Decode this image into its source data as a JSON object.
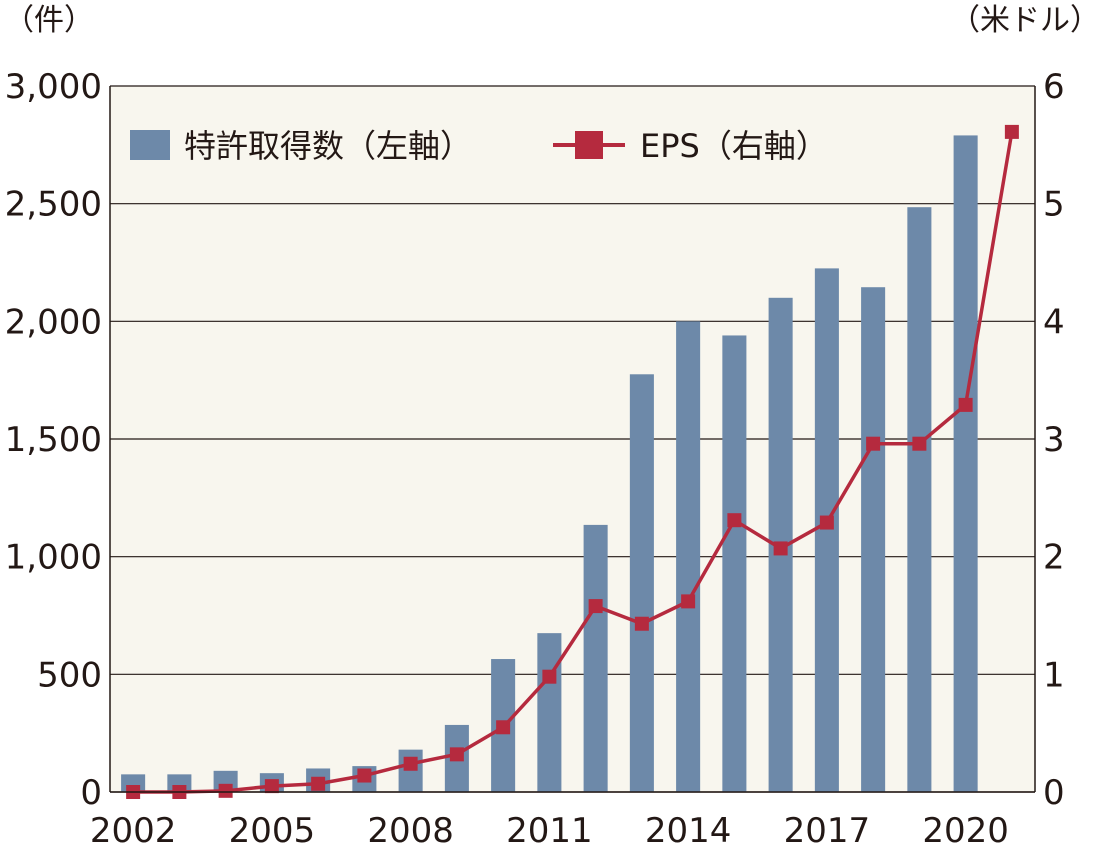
{
  "chart_data": {
    "type": "bar+line",
    "title": "",
    "y_left_unit": "（件）",
    "y_right_unit": "（米ドル）",
    "ylim_left": [
      0,
      3000
    ],
    "ylim_right": [
      0,
      6
    ],
    "y_left_ticks": [
      "0",
      "500",
      "1,000",
      "1,500",
      "2,000",
      "2,500",
      "3,000"
    ],
    "y_right_ticks": [
      "0",
      "1",
      "2",
      "3",
      "4",
      "5",
      "6"
    ],
    "x_tick_labels": [
      "2002",
      "2005",
      "2008",
      "2011",
      "2014",
      "2017",
      "2020"
    ],
    "grid": true,
    "legend_position": "top-left",
    "x": [
      2002,
      2003,
      2004,
      2005,
      2006,
      2007,
      2008,
      2009,
      2010,
      2011,
      2012,
      2013,
      2014,
      2015,
      2016,
      2017,
      2018,
      2019,
      2020,
      2021
    ],
    "series": [
      {
        "name": "特許取得数（左軸）",
        "type": "bar",
        "axis": "left",
        "color": "#6d89a9",
        "values": [
          75,
          75,
          90,
          80,
          100,
          110,
          180,
          285,
          565,
          675,
          1135,
          1775,
          2000,
          1940,
          2100,
          2225,
          2145,
          2485,
          2790,
          null
        ]
      },
      {
        "name": "EPS（右軸）",
        "type": "line",
        "axis": "right",
        "color": "#b52a3e",
        "values": [
          0.0,
          0.0,
          0.01,
          0.05,
          0.07,
          0.14,
          0.24,
          0.32,
          0.55,
          0.98,
          1.58,
          1.43,
          1.62,
          2.31,
          2.07,
          2.29,
          2.96,
          2.96,
          3.29,
          5.61
        ]
      }
    ]
  }
}
